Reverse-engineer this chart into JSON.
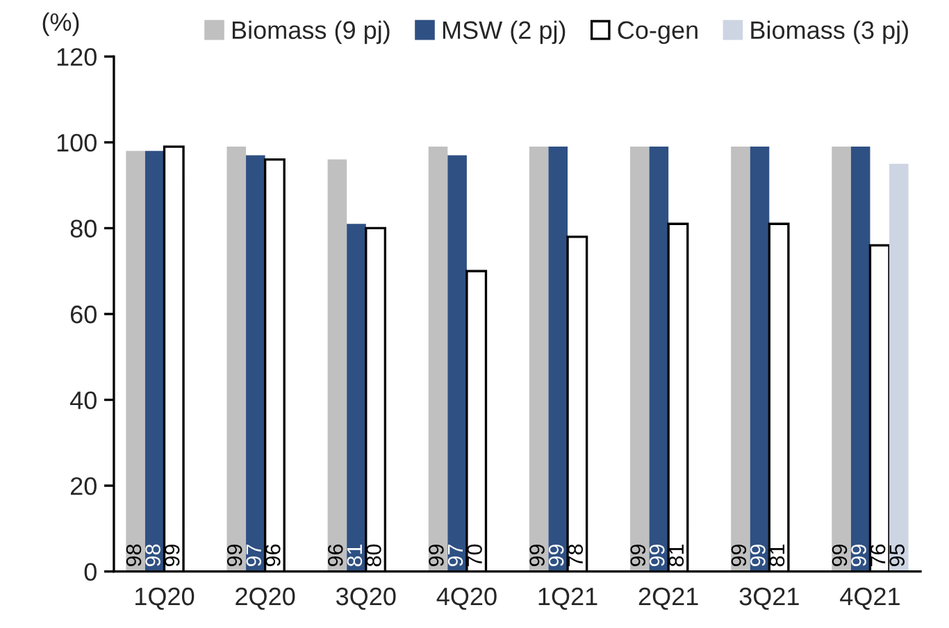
{
  "chart_data": {
    "type": "bar",
    "ylabel": "(%)",
    "categories": [
      "1Q20",
      "2Q20",
      "3Q20",
      "4Q20",
      "1Q21",
      "2Q21",
      "3Q21",
      "4Q21"
    ],
    "series": [
      {
        "name": "Biomass (9 pj)",
        "color": "#c0c0c0",
        "values": [
          98,
          99,
          96,
          99,
          99,
          99,
          99,
          99
        ]
      },
      {
        "name": "MSW (2 pj)",
        "color": "#2f5083",
        "values": [
          98,
          97,
          81,
          97,
          99,
          99,
          99,
          99
        ]
      },
      {
        "name": "Co-gen",
        "color": "#ffffff",
        "values": [
          99,
          96,
          80,
          70,
          78,
          81,
          81,
          76
        ]
      },
      {
        "name": "Biomass (3 pj)",
        "color": "#cdd5e3",
        "values": [
          null,
          null,
          null,
          null,
          null,
          null,
          null,
          95
        ]
      }
    ],
    "ylim": [
      0,
      120
    ],
    "yticks": [
      0,
      20,
      40,
      60,
      80,
      100,
      120
    ],
    "data_labels": true,
    "legend": "top",
    "grid": false
  }
}
